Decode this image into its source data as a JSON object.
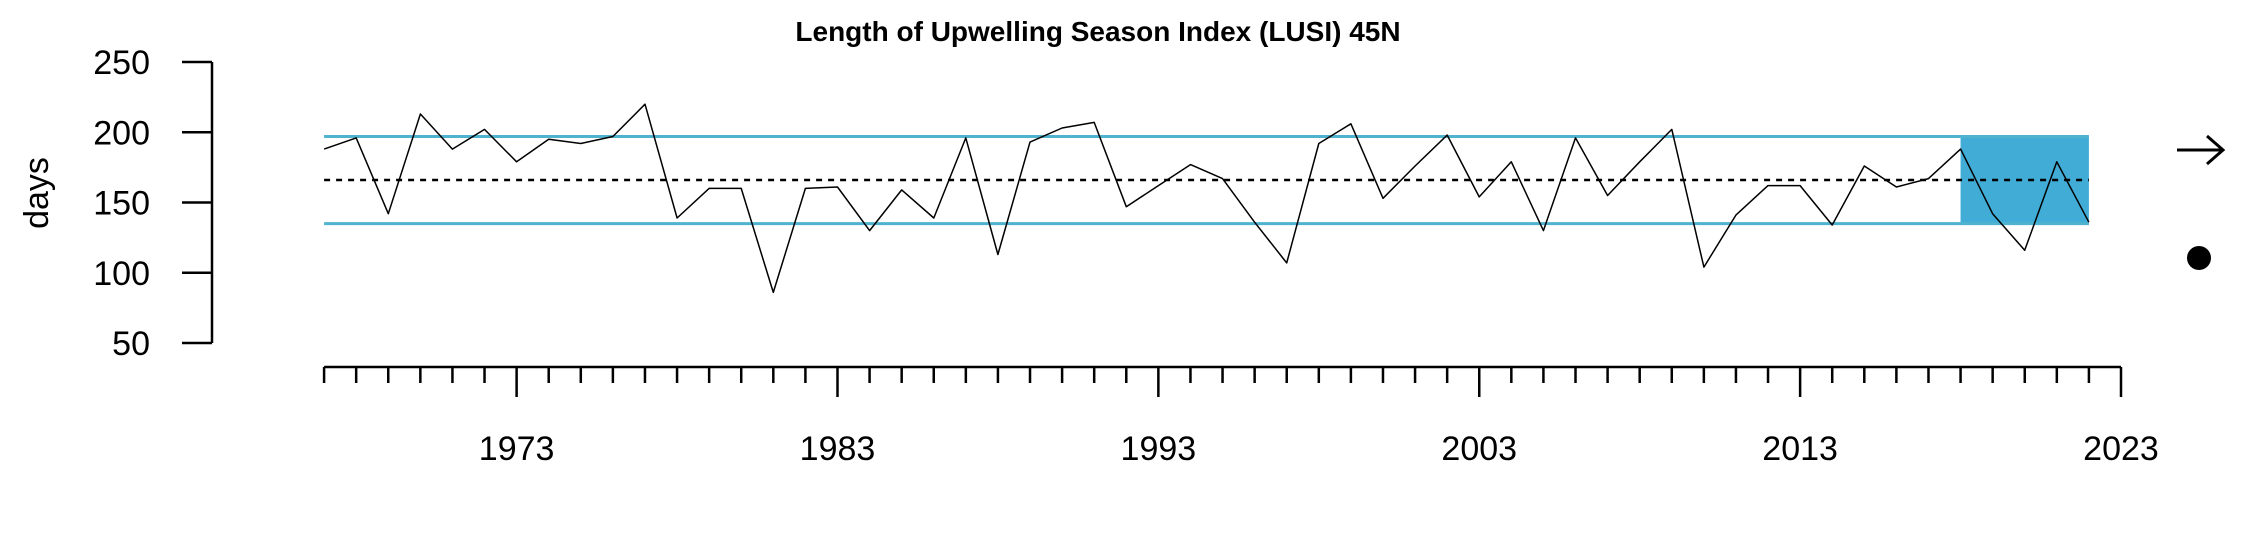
{
  "chart_data": {
    "type": "line",
    "title": "Length of Upwelling Season Index (LUSI) 45N",
    "xlabel": "",
    "ylabel": "days",
    "x": [
      1967,
      1968,
      1969,
      1970,
      1971,
      1972,
      1973,
      1974,
      1975,
      1976,
      1977,
      1978,
      1979,
      1980,
      1981,
      1982,
      1983,
      1984,
      1985,
      1986,
      1987,
      1988,
      1989,
      1990,
      1991,
      1992,
      1993,
      1994,
      1995,
      1996,
      1997,
      1998,
      1999,
      2000,
      2001,
      2002,
      2003,
      2004,
      2005,
      2006,
      2007,
      2008,
      2009,
      2010,
      2011,
      2012,
      2013,
      2014,
      2015,
      2016,
      2017,
      2018,
      2019,
      2020,
      2021,
      2022
    ],
    "series": [
      {
        "values": [
          188,
          196,
          142,
          213,
          188,
          202,
          179,
          195,
          192,
          197,
          220,
          139,
          160,
          160,
          86,
          160,
          161,
          130,
          159,
          139,
          196,
          113,
          193,
          203,
          207,
          147,
          162,
          177,
          167,
          136,
          107,
          192,
          206,
          153,
          176,
          198,
          154,
          179,
          130,
          196,
          155,
          179,
          202,
          104,
          141,
          162,
          162,
          134,
          176,
          161,
          167,
          188,
          142,
          116,
          179,
          136
        ],
        "color": "#000000"
      }
    ],
    "mean": 166,
    "upper_sd": 197,
    "lower_sd": 135,
    "highlight_range": [
      2018,
      2022
    ],
    "colors": {
      "sd_line": "#4fb3cf",
      "highlight": "#41acd6",
      "line": "#000000",
      "mean": "#000000"
    },
    "xlim": [
      1966,
      2023
    ],
    "ylim": [
      50,
      250
    ],
    "yticks": [
      50,
      100,
      150,
      200,
      250
    ],
    "xticks_major": [
      1973,
      1983,
      1993,
      2003,
      2013,
      2023
    ],
    "xticks_minor_start": 1967,
    "grid": false,
    "trend_symbol": "→",
    "trend_icon": "right-arrow-icon",
    "mean_symbol_icon": "filled-circle-icon"
  }
}
